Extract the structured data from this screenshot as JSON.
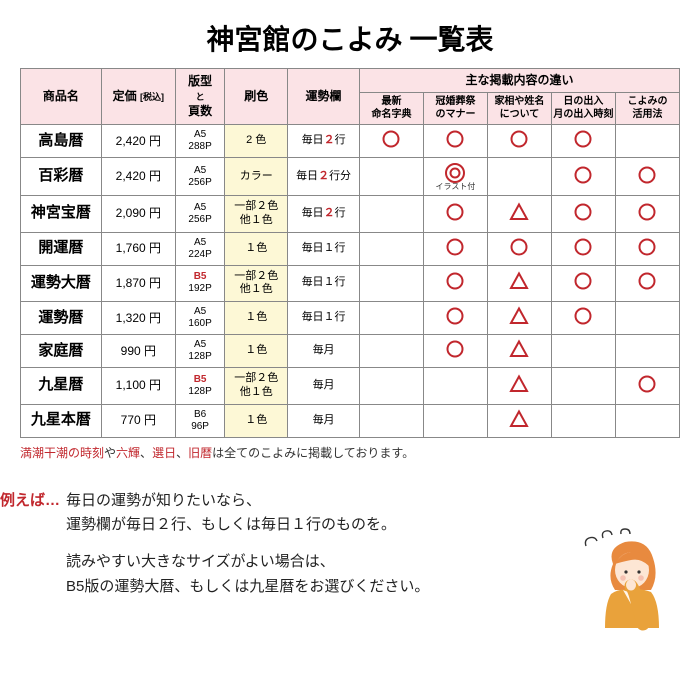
{
  "title": "神宮館のこよみ 一覧表",
  "headers": {
    "name": "商品名",
    "price_html": "定価 <span style='font-size:9px'>[税込]</span>",
    "format_html": "版型<br><span style='font-size:9px'>と</span><br>頁数",
    "color": "刷色",
    "fortune": "運勢欄",
    "main_diff": "主な掲載内容の違い",
    "sub": [
      "最新<br>命名字典",
      "冠婚葬祭<br>のマナー",
      "家相や姓名<br>について",
      "日の出入<br>月の出入時刻",
      "こよみの<br>活用法"
    ]
  },
  "rows": [
    {
      "name": "高島暦",
      "price": "2,420 円",
      "format": "A5<br>288P",
      "format_red": "",
      "color": "2 色",
      "fortune": "毎日<span class='red'>２</span>行",
      "marks": [
        "○",
        "○",
        "○",
        "○",
        ""
      ]
    },
    {
      "name": "百彩暦",
      "price": "2,420 円",
      "format": "A5<br>256P",
      "format_red": "",
      "color": "カラー",
      "fortune": "毎日<span class='red'>２</span>行分",
      "marks": [
        "",
        "◎",
        "",
        "○",
        "○"
      ],
      "illust": true
    },
    {
      "name": "神宮宝暦",
      "price": "2,090 円",
      "format": "A5<br>256P",
      "format_red": "",
      "color": "一部２色<br>他１色",
      "fortune": "毎日<span class='red'>２</span>行",
      "marks": [
        "",
        "○",
        "△",
        "○",
        "○"
      ]
    },
    {
      "name": "開運暦",
      "price": "1,760 円",
      "format": "A5<br>224P",
      "format_red": "",
      "color": "１色",
      "fortune": "毎日１行",
      "marks": [
        "",
        "○",
        "○",
        "○",
        "○"
      ]
    },
    {
      "name": "運勢大暦",
      "price": "1,870 円",
      "format_red": "B5",
      "format": "192P",
      "color": "一部２色<br>他１色",
      "fortune": "毎日１行",
      "marks": [
        "",
        "○",
        "△",
        "○",
        "○"
      ]
    },
    {
      "name": "運勢暦",
      "price": "1,320 円",
      "format": "A5<br>160P",
      "format_red": "",
      "color": "１色",
      "fortune": "毎日１行",
      "marks": [
        "",
        "○",
        "△",
        "○",
        ""
      ]
    },
    {
      "name": "家庭暦",
      "price": "990 円",
      "format": "A5<br>128P",
      "format_red": "",
      "color": "１色",
      "fortune": "毎月",
      "marks": [
        "",
        "○",
        "△",
        "",
        ""
      ]
    },
    {
      "name": "九星暦",
      "price": "1,100 円",
      "format_red": "B5",
      "format": "128P",
      "color": "一部２色<br>他１色",
      "fortune": "毎月",
      "marks": [
        "",
        "",
        "△",
        "",
        "○"
      ]
    },
    {
      "name": "九星本暦",
      "price": "770 円",
      "format": "B6<br>96P",
      "format_red": "",
      "color": "１色",
      "fortune": "毎月",
      "marks": [
        "",
        "",
        "△",
        "",
        ""
      ]
    }
  ],
  "footnote_html": "<span class='red' style='font-weight:normal;color:#c1272d'>満潮干潮の時刻</span>や<span style='color:#c1272d'>六輝</span>、<span style='color:#c1272d'>選日</span>、<span style='color:#c1272d'>旧暦</span>は全てのこよみに掲載しております。",
  "example": {
    "label": "例えば…",
    "p1": "毎日の運勢が知りたいなら、<br>運勢欄が毎日２行、もしくは毎日１行のものを。",
    "p2": "読みやすい大きなサイズがよい場合は、<br>B5版の運勢大暦、もしくは九星暦をお選びください。"
  }
}
